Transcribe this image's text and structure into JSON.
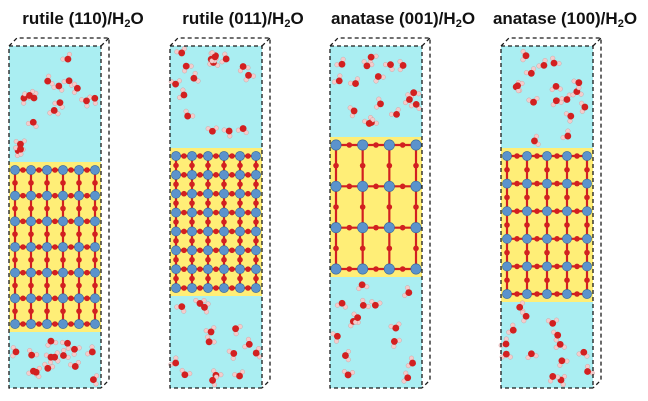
{
  "panels": [
    {
      "label": "rutile (110)/H",
      "subscript": "2",
      "label_tail": "O"
    },
    {
      "label": "rutile (011)/H",
      "subscript": "2",
      "label_tail": "O"
    },
    {
      "label": "anatase (001)/H",
      "subscript": "2",
      "label_tail": "O"
    },
    {
      "label": "anatase (100)/H",
      "subscript": "2",
      "label_tail": "O"
    }
  ],
  "colors": {
    "water_region": "#aaeef2",
    "slab_region": "#ffee77",
    "ti_atom": "#5b93cc",
    "o_atom": "#d22020",
    "h_atom": "#f3cccc",
    "box_line": "#1a1a1a"
  }
}
